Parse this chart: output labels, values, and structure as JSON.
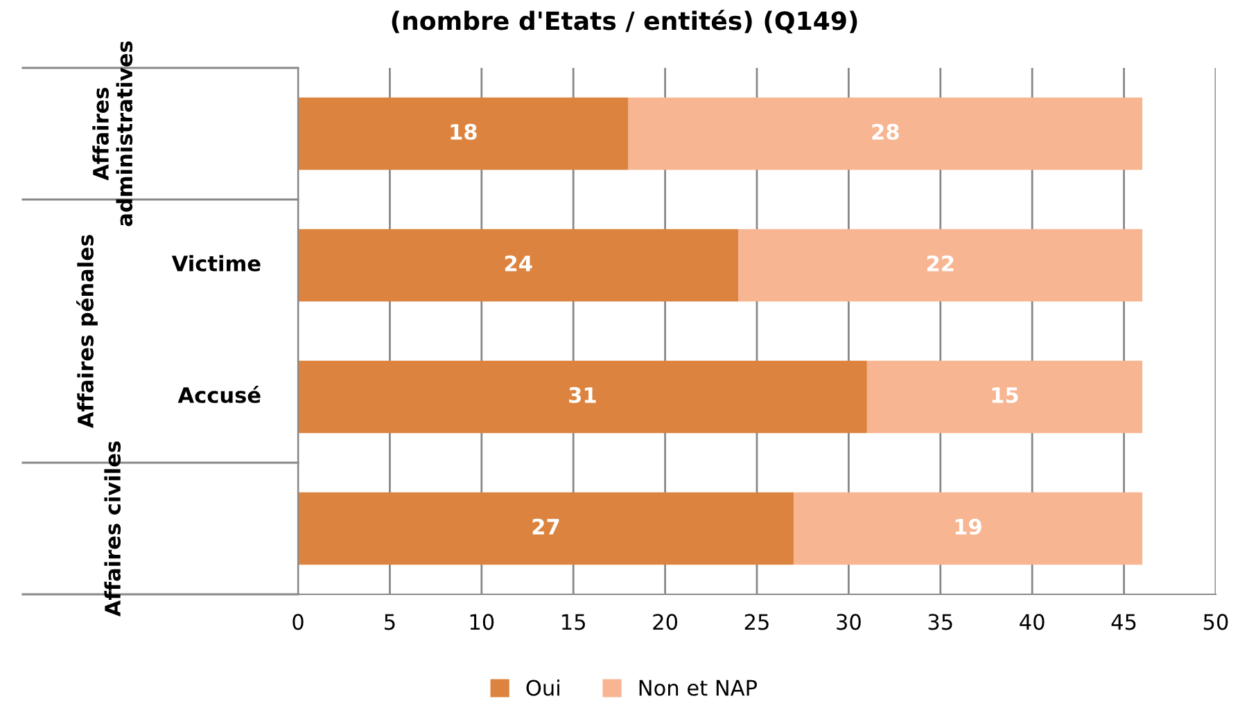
{
  "chart_data": {
    "type": "bar",
    "orientation": "horizontal",
    "stacked": true,
    "title": "(nombre d'Etats / entités) (Q149)",
    "categories": [
      null,
      "Victime",
      "Accusé",
      null
    ],
    "series": [
      {
        "name": "Oui",
        "color": "#dc843f",
        "values": [
          18,
          24,
          31,
          27
        ]
      },
      {
        "name": "Non et NAP",
        "color": "#f8b591",
        "values": [
          28,
          22,
          15,
          19
        ]
      }
    ],
    "annotations": [
      "Affaires administratives",
      "Affaires pénales",
      "Affaires civiles"
    ],
    "xlim": [
      0,
      50
    ],
    "xticks": [
      0,
      5,
      10,
      15,
      20,
      25,
      30,
      35,
      40,
      45,
      50
    ],
    "grid": "x",
    "data_labels": true,
    "legend": "bottom"
  }
}
